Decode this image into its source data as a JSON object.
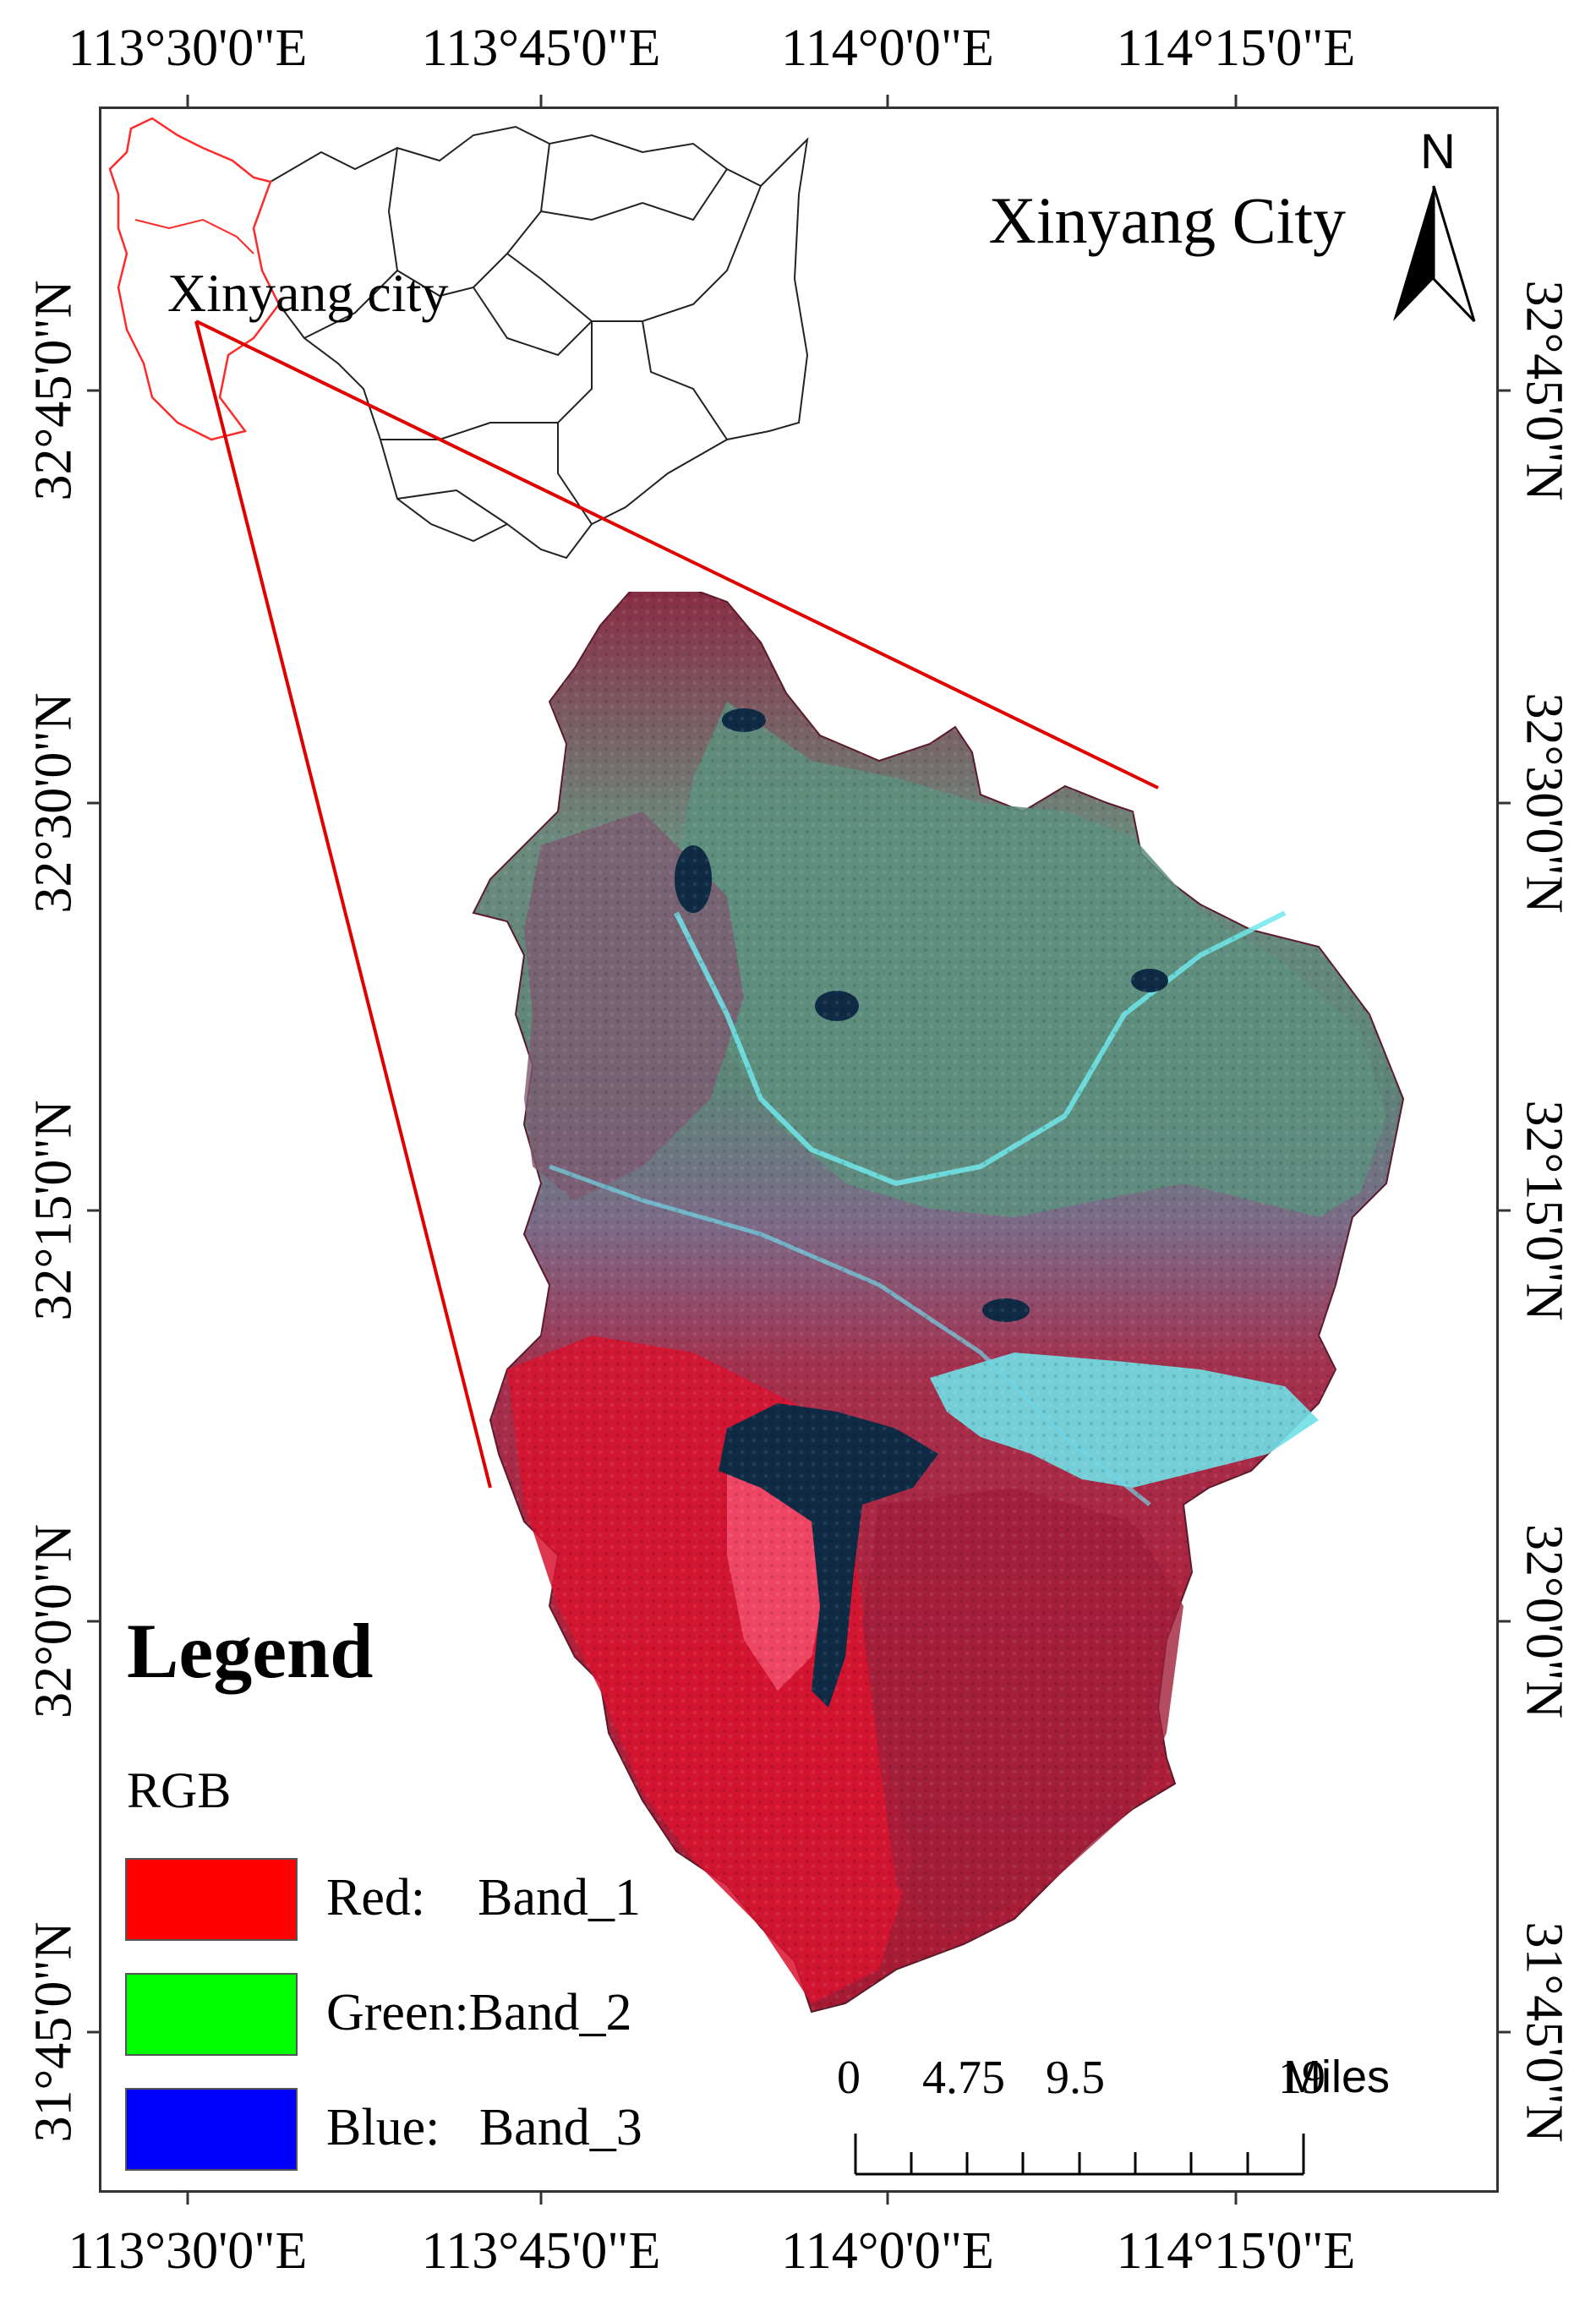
{
  "map": {
    "title": "Xinyang City",
    "north_arrow_letter": "N",
    "inset_label": "Xinyang city",
    "longitude_labels": [
      "113°30'0\"E",
      "113°45'0\"E",
      "114°0'0\"E",
      "114°15'0\"E"
    ],
    "latitude_labels": [
      "32°45'0\"N",
      "32°30'0\"N",
      "32°15'0\"N",
      "32°0'0\"N",
      "31°45'0\"N"
    ],
    "colors": {
      "highlight_region": "#ff2a2a",
      "locator_line": "#e00000",
      "vegetation_red": "#c8142e",
      "urban_cyan": "#5fe3e8",
      "water_dark": "#0e2a44",
      "farmland_green": "#4e8a78"
    }
  },
  "legend": {
    "title": "Legend",
    "subtitle": "RGB",
    "items": [
      {
        "label": "Red:    Band_1",
        "color": "#ff0000"
      },
      {
        "label": "Green:Band_2",
        "color": "#00ff00"
      },
      {
        "label": "Blue:   Band_3",
        "color": "#0000ff"
      }
    ]
  },
  "scale_bar": {
    "labels": [
      "0",
      "4.75",
      "9.5",
      "19"
    ],
    "unit": "Miles"
  }
}
